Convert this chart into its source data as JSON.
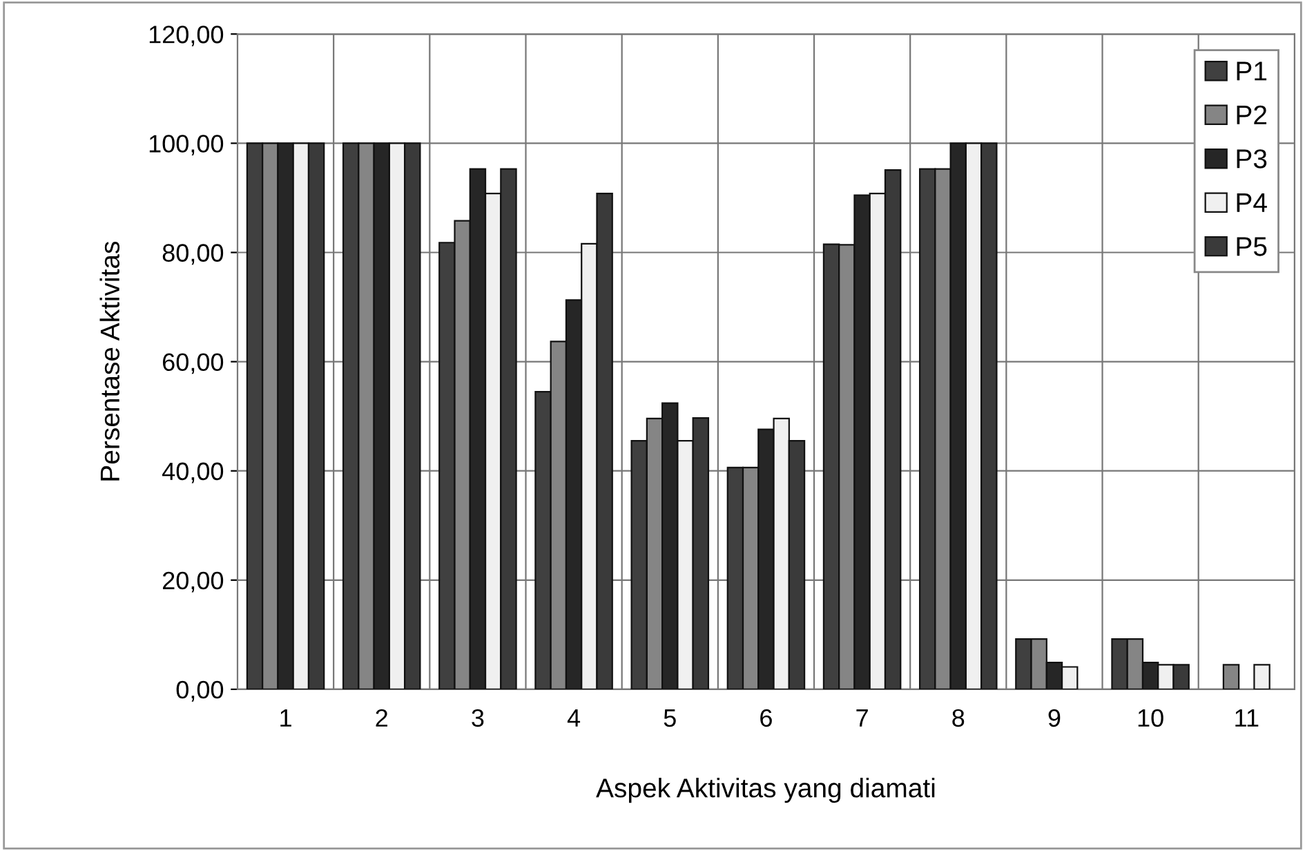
{
  "chart_data": {
    "type": "bar",
    "xlabel": "Aspek Aktivitas yang diamati",
    "ylabel": "Persentase Aktivitas",
    "categories": [
      "1",
      "2",
      "3",
      "4",
      "5",
      "6",
      "7",
      "8",
      "9",
      "10",
      "11"
    ],
    "series": [
      {
        "name": "P1",
        "color": "#404040",
        "values": [
          100,
          100,
          81.8,
          54.5,
          45.5,
          40.6,
          81.5,
          95.3,
          9.2,
          9.2,
          null
        ]
      },
      {
        "name": "P2",
        "color": "#858585",
        "values": [
          100,
          100,
          85.8,
          63.7,
          49.6,
          40.6,
          81.4,
          95.3,
          9.2,
          9.2,
          4.5
        ]
      },
      {
        "name": "P3",
        "color": "#262626",
        "values": [
          100,
          100,
          95.3,
          71.3,
          52.4,
          47.6,
          90.5,
          100,
          4.9,
          4.9,
          null
        ]
      },
      {
        "name": "P4",
        "color": "#f0f0f0",
        "values": [
          100,
          100,
          90.8,
          81.6,
          45.5,
          49.6,
          90.8,
          100,
          4.1,
          4.5,
          4.5
        ]
      },
      {
        "name": "P5",
        "color": "#3a3a3a",
        "values": [
          100,
          100,
          95.3,
          90.8,
          49.7,
          45.5,
          95.1,
          100,
          null,
          4.5,
          null
        ]
      }
    ],
    "ylim": [
      0,
      120
    ],
    "yticks": [
      {
        "value": 0,
        "label": "0,00"
      },
      {
        "value": 20,
        "label": "20,00"
      },
      {
        "value": 40,
        "label": "40,00"
      },
      {
        "value": 60,
        "label": "60,00"
      },
      {
        "value": 80,
        "label": "80,00"
      },
      {
        "value": 100,
        "label": "100,00"
      },
      {
        "value": 120,
        "label": "120,00"
      }
    ],
    "grid": true,
    "legend": "top right"
  }
}
